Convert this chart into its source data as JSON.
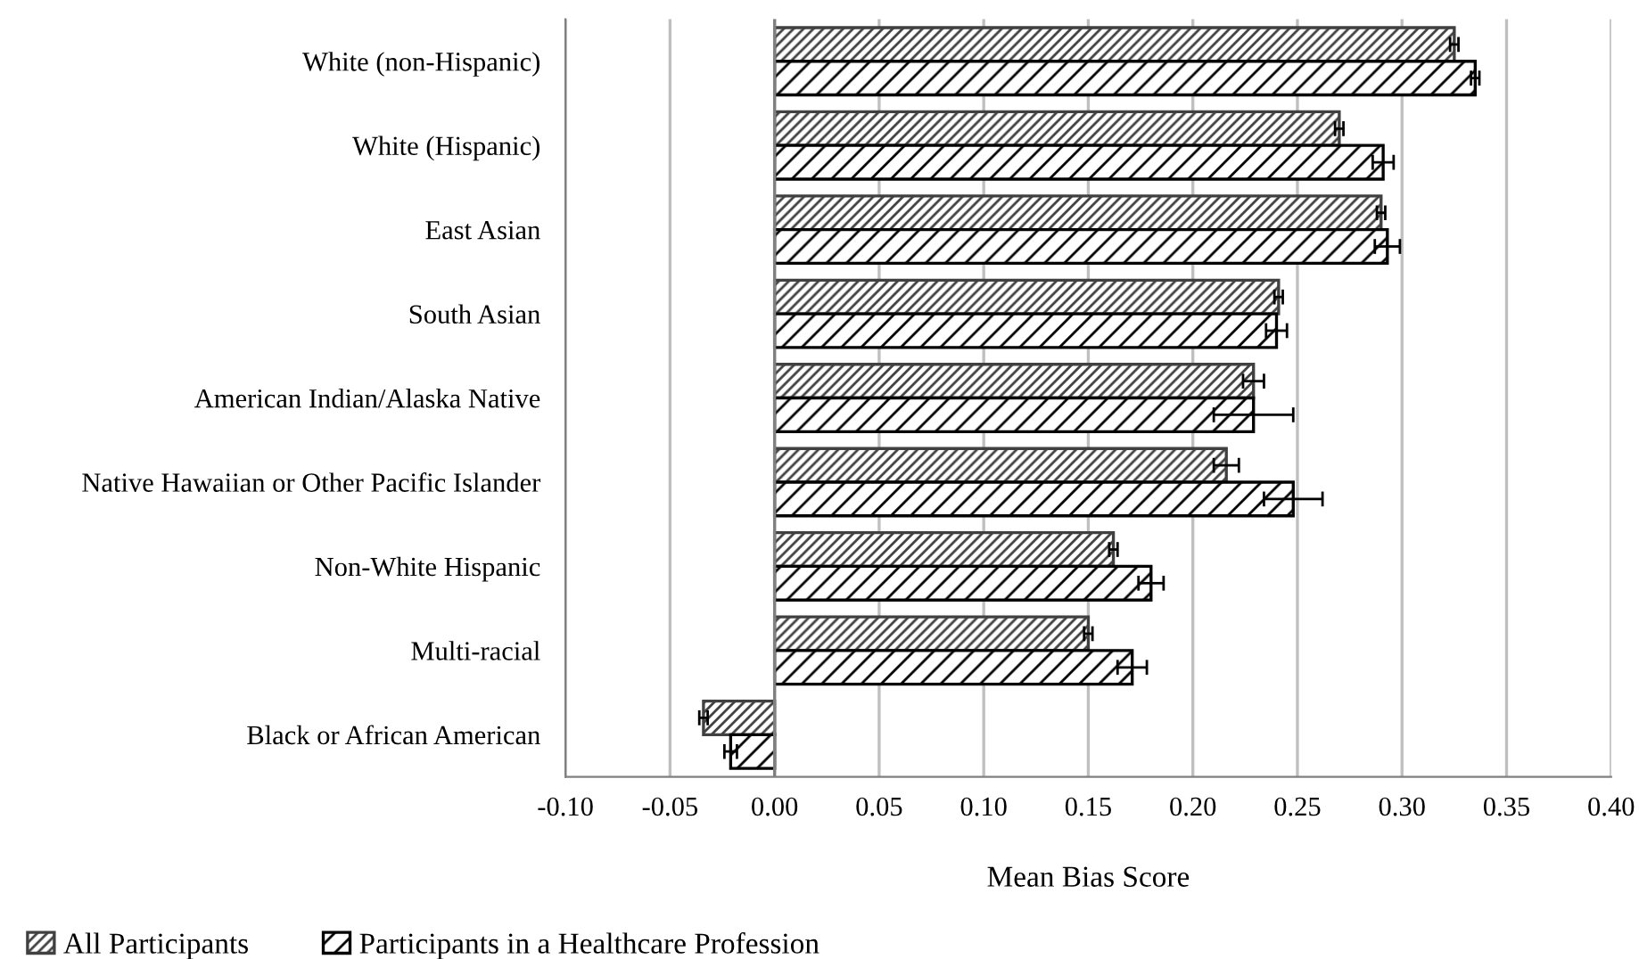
{
  "chart_data": {
    "type": "bar",
    "orientation": "horizontal",
    "xlabel": "Mean Bias Score",
    "categories": [
      "White (non-Hispanic)",
      "White (Hispanic)",
      "East Asian",
      "South Asian",
      "American Indian/Alaska Native",
      "Native Hawaiian or Other Pacific Islander",
      "Non-White Hispanic",
      "Multi-racial",
      "Black or African American"
    ],
    "series": [
      {
        "name": "All Participants",
        "color": "#404040",
        "values": [
          0.325,
          0.27,
          0.29,
          0.241,
          0.229,
          0.216,
          0.162,
          0.15,
          -0.034
        ],
        "errors": [
          0.002,
          0.002,
          0.002,
          0.002,
          0.005,
          0.006,
          0.002,
          0.002,
          0.002
        ]
      },
      {
        "name": "Participants in a Healthcare Profession",
        "color": "#000000",
        "values": [
          0.335,
          0.291,
          0.293,
          0.24,
          0.229,
          0.248,
          0.18,
          0.171,
          -0.021
        ],
        "errors": [
          0.002,
          0.005,
          0.006,
          0.005,
          0.019,
          0.014,
          0.006,
          0.007,
          0.003
        ]
      }
    ],
    "xlim": [
      -0.1,
      0.4
    ],
    "xticks": [
      {
        "value": -0.1,
        "label": "-0.10"
      },
      {
        "value": -0.05,
        "label": "-0.05"
      },
      {
        "value": 0.0,
        "label": "0.00"
      },
      {
        "value": 0.05,
        "label": "0.05"
      },
      {
        "value": 0.1,
        "label": "0.10"
      },
      {
        "value": 0.15,
        "label": "0.15"
      },
      {
        "value": 0.2,
        "label": "0.20"
      },
      {
        "value": 0.25,
        "label": "0.25"
      },
      {
        "value": 0.3,
        "label": "0.30"
      },
      {
        "value": 0.35,
        "label": "0.35"
      },
      {
        "value": 0.4,
        "label": "0.40"
      }
    ],
    "grid": "x",
    "legend": "bottom left"
  }
}
